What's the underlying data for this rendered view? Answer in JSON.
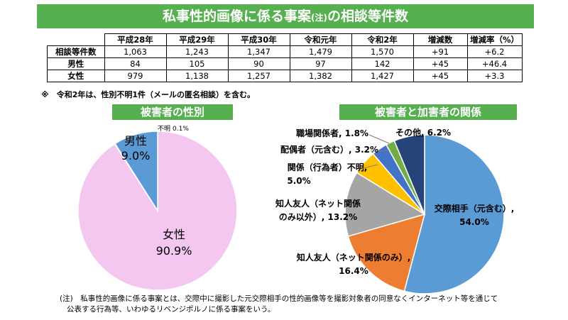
{
  "title": {
    "main": "私事性的画像に係る事案",
    "note_mark": "(注)",
    "suffix": "の相談等件数"
  },
  "table": {
    "headers": [
      "平成28年",
      "平成29年",
      "平成30年",
      "令和元年",
      "令和2年",
      "増減数",
      "増減率（%）"
    ],
    "rows": [
      {
        "label": "相談等件数",
        "values": [
          "1,063",
          "1,243",
          "1,347",
          "1,479",
          "1,570",
          "+91",
          "+6.2"
        ]
      },
      {
        "label": "男性",
        "values": [
          "84",
          "105",
          "90",
          "97",
          "142",
          "+45",
          "+46.4"
        ]
      },
      {
        "label": "女性",
        "values": [
          "979",
          "1,138",
          "1,257",
          "1,382",
          "1,427",
          "+45",
          "+3.3"
        ]
      }
    ]
  },
  "table_note": "※　令和2年は、性別不明1件（メールの匿名相談）を含む。",
  "footnote": {
    "line1": "(注)　私事性的画像に係る事案とは、交際中に撮影した元交際相手の性的画像等を撮影対象者の同意なくインターネット等を通じて",
    "line2": "公表する行為等、いわゆるリベンジポルノに係る事案をいう。"
  },
  "chart_data": [
    {
      "type": "pie",
      "title": "被害者の性別",
      "slices": [
        {
          "label": "女性",
          "value": 90.9,
          "value_label": "90.9%",
          "color": "#f3c7f0"
        },
        {
          "label": "不明",
          "value": 0.1,
          "value_label": "0.1%",
          "color": "#bfbfbf"
        },
        {
          "label": "男性",
          "value": 9.0,
          "value_label": "9.0%",
          "color": "#5b9bd5"
        }
      ]
    },
    {
      "type": "pie",
      "title": "被害者と加害者の関係",
      "slices": [
        {
          "label": "交際相手（元含む）,",
          "value": 54.0,
          "value_label": "54.0%",
          "color": "#5b9bd5"
        },
        {
          "label": "知人友人（ネット関係のみ）,",
          "value": 16.4,
          "value_label": "16.4%",
          "color": "#ed7d31"
        },
        {
          "label": "知人友人（ネット関係のみ以外）,",
          "value": 13.2,
          "value_label": "13.2%",
          "color": "#a5a5a5"
        },
        {
          "label": "関係（行為者）不明,",
          "value": 5.0,
          "value_label": "5.0%",
          "color": "#ffc000"
        },
        {
          "label": "配偶者（元含む）,",
          "value": 3.2,
          "value_label": "3.2%",
          "color": "#4472c4"
        },
        {
          "label": "職場関係者,",
          "value": 1.8,
          "value_label": "1.8%",
          "color": "#70ad47"
        },
        {
          "label": "その他,",
          "value": 6.2,
          "value_label": "6.2%",
          "color": "#264478"
        }
      ]
    }
  ]
}
